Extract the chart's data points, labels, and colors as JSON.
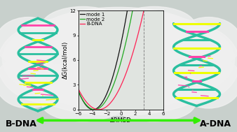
{
  "xlabel": "ΔRMSD",
  "ylabel": "ΔG(kcal/mol)",
  "xlim": [
    -6,
    6
  ],
  "ylim": [
    0,
    12
  ],
  "xticks": [
    -6,
    -4,
    -2,
    0,
    2,
    4,
    6
  ],
  "yticks": [
    0,
    3,
    6,
    9,
    12
  ],
  "dashed_x": 3.2,
  "legend_labels": [
    "mode 1",
    "mode 2",
    "B-DNA"
  ],
  "line_colors": [
    "#111111",
    "#22aa22",
    "#ff2255"
  ],
  "plot_bg": "#e0e4e0",
  "outer_bg": "#c8d0cc",
  "cloud_color": "#f0f0f0",
  "b_dna_label": "B-DNA",
  "a_dna_label": "A-DNA",
  "arrow_color": "#33ee00",
  "tick_fontsize": 5,
  "legend_fontsize": 5,
  "axis_label_fontsize": 6,
  "dna_label_fontsize": 9,
  "mode1_a": 0.52,
  "mode1_min": -3.9,
  "mode2_a": 0.42,
  "mode2_min": -3.7,
  "bdna_a": 0.3,
  "bdna_min": -3.1
}
